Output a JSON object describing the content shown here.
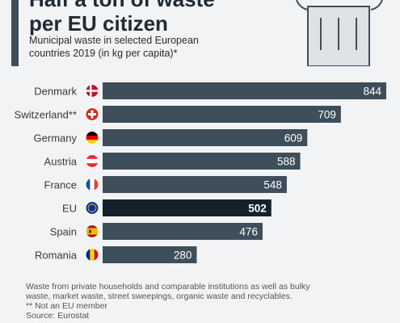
{
  "header": {
    "title_line1": "Half a ton of waste",
    "title_line2": "per EU citizen",
    "subtitle": "Municipal waste in selected European countries 2019 (in kg per capita)*"
  },
  "icons": {
    "header": "trash-bin-icon"
  },
  "colors": {
    "bar_default": "#3e4e5a",
    "bar_highlight": "#14212d",
    "accent": "#3e4e5a",
    "background": "#f1f3f4"
  },
  "chart_data": {
    "type": "bar",
    "orientation": "horizontal",
    "categories": [
      "Denmark",
      "Switzerland**",
      "Germany",
      "Austria",
      "France",
      "EU",
      "Spain",
      "Romania"
    ],
    "values": [
      844,
      709,
      609,
      588,
      548,
      502,
      476,
      280
    ],
    "highlight": "EU",
    "flags": [
      "denmark-flag-icon",
      "switzerland-flag-icon",
      "germany-flag-icon",
      "austria-flag-icon",
      "france-flag-icon",
      "eu-flag-icon",
      "spain-flag-icon",
      "romania-flag-icon"
    ],
    "xlim": [
      0,
      844
    ],
    "grid": false,
    "title": "Half a ton of waste per EU citizen",
    "xlabel": "",
    "ylabel": ""
  },
  "footnotes": [
    "Waste from private households and comparable institutions as well as bulky waste, market waste, street sweepings, organic waste and recyclables.",
    "** Not an EU member",
    "Source: Eurostat"
  ]
}
